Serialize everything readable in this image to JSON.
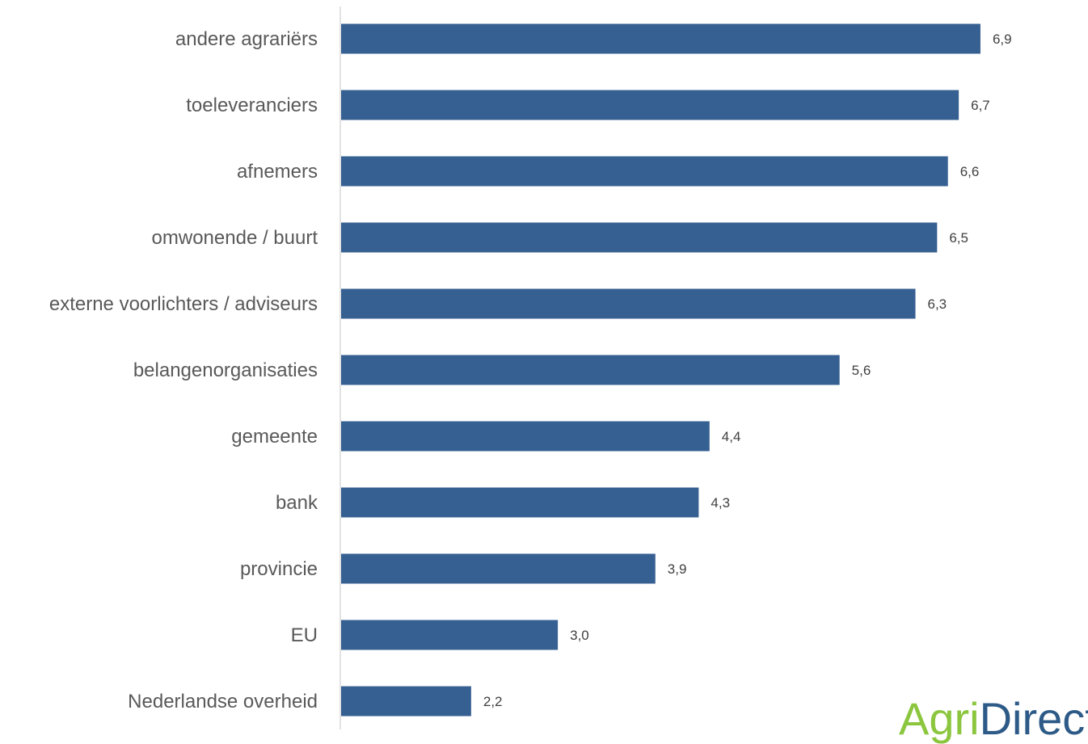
{
  "chart_data": {
    "type": "bar",
    "orientation": "horizontal",
    "categories": [
      "andere agrariërs",
      "toeleveranciers",
      "afnemers",
      "omwonende / buurt",
      "externe voorlichters / adviseurs",
      "belangenorganisaties",
      "gemeente",
      "bank",
      "provincie",
      "EU",
      "Nederlandse overheid"
    ],
    "values": [
      6.9,
      6.7,
      6.6,
      6.5,
      6.3,
      5.6,
      4.4,
      4.3,
      3.9,
      3.0,
      2.2
    ],
    "value_labels": [
      "6,9",
      "6,7",
      "6,6",
      "6,5",
      "6,3",
      "5,6",
      "4,4",
      "4,3",
      "3,9",
      "3,0",
      "2,2"
    ],
    "xlim": [
      1,
      7.9
    ],
    "grid": false,
    "colors": {
      "bar": "#376092",
      "category_text": "#595959",
      "value_text": "#404040",
      "axis": "#d9d9d9"
    }
  },
  "logo": {
    "part1": "Agri",
    "part2": "Direct",
    "colors": {
      "part1": "#8cc63f",
      "part2": "#2d5a87"
    }
  }
}
